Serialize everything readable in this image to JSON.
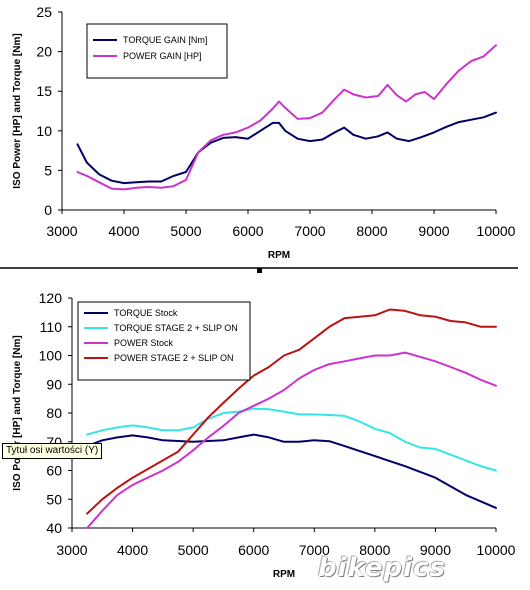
{
  "chart_data": [
    {
      "type": "line",
      "title": "",
      "xlabel": "RPM",
      "ylabel": "ISO Power [HP] and Torque [Nm]",
      "xlim": [
        3000,
        10000
      ],
      "ylim": [
        0,
        25
      ],
      "xticks": [
        "3000",
        "4000",
        "5000",
        "6000",
        "7000",
        "8000",
        "9000",
        "10000"
      ],
      "yticks": [
        "0",
        "5",
        "10",
        "15",
        "20",
        "25"
      ],
      "grid": false,
      "legend_position": "top-left",
      "series": [
        {
          "name": "TORQUE GAIN [Nm]",
          "color": "#000066",
          "x": [
            3250,
            3400,
            3600,
            3800,
            4000,
            4200,
            4400,
            4600,
            4800,
            5000,
            5200,
            5400,
            5600,
            5800,
            6000,
            6200,
            6400,
            6500,
            6600,
            6800,
            7000,
            7200,
            7400,
            7550,
            7700,
            7900,
            8100,
            8250,
            8400,
            8600,
            8800,
            9000,
            9200,
            9400,
            9600,
            9800,
            10000
          ],
          "y": [
            8.3,
            6.0,
            4.5,
            3.7,
            3.4,
            3.5,
            3.6,
            3.6,
            4.3,
            4.8,
            7.3,
            8.5,
            9.1,
            9.2,
            9.0,
            10.0,
            11.0,
            11.0,
            10.0,
            9.0,
            8.7,
            8.9,
            9.8,
            10.4,
            9.5,
            9.0,
            9.3,
            9.8,
            9.0,
            8.7,
            9.2,
            9.8,
            10.5,
            11.1,
            11.4,
            11.7,
            12.3
          ]
        },
        {
          "name": "POWER GAIN [HP]",
          "color": "#cc33cc",
          "x": [
            3250,
            3400,
            3600,
            3800,
            4000,
            4200,
            4400,
            4600,
            4800,
            5000,
            5200,
            5400,
            5600,
            5800,
            6000,
            6200,
            6400,
            6500,
            6600,
            6800,
            7000,
            7200,
            7400,
            7550,
            7700,
            7900,
            8100,
            8250,
            8400,
            8550,
            8700,
            8850,
            9000,
            9200,
            9400,
            9600,
            9800,
            10000
          ],
          "y": [
            4.8,
            4.3,
            3.5,
            2.7,
            2.6,
            2.8,
            2.9,
            2.8,
            3.0,
            3.8,
            7.3,
            8.8,
            9.5,
            9.8,
            10.4,
            11.3,
            12.8,
            13.7,
            12.9,
            11.5,
            11.6,
            12.3,
            14.0,
            15.2,
            14.6,
            14.2,
            14.4,
            15.8,
            14.5,
            13.7,
            14.6,
            14.9,
            14.0,
            15.9,
            17.6,
            18.8,
            19.4,
            20.8
          ]
        }
      ]
    },
    {
      "type": "line",
      "title": "",
      "xlabel": "RPM",
      "ylabel": "ISO Power [HP] and Torque [Nm]",
      "xlim": [
        3000,
        10000
      ],
      "ylim": [
        40,
        120
      ],
      "xticks": [
        "3000",
        "4000",
        "5000",
        "6000",
        "7000",
        "8000",
        "9000",
        "10000"
      ],
      "yticks": [
        "40",
        "50",
        "60",
        "70",
        "80",
        "90",
        "100",
        "110",
        "120"
      ],
      "grid": false,
      "legend_position": "top-left",
      "series": [
        {
          "name": "TORQUE Stock",
          "color": "#000066",
          "x": [
            3250,
            3500,
            3750,
            4000,
            4250,
            4500,
            5000,
            5500,
            5750,
            6000,
            6250,
            6500,
            6750,
            7000,
            7250,
            7500,
            8000,
            8500,
            9000,
            9500,
            10000
          ],
          "y": [
            68.5,
            70.5,
            71.5,
            72.2,
            71.5,
            70.5,
            70.0,
            70.5,
            71.5,
            72.5,
            71.5,
            70.0,
            70.0,
            70.5,
            70.2,
            68.5,
            65.0,
            61.5,
            57.5,
            51.5,
            47.0
          ]
        },
        {
          "name": "TORQUE STAGE 2 + SLIP ON",
          "color": "#33e6e6",
          "x": [
            3250,
            3500,
            3750,
            4000,
            4250,
            4500,
            4750,
            5000,
            5250,
            5500,
            5750,
            6000,
            6250,
            6500,
            6750,
            7000,
            7250,
            7500,
            7750,
            8000,
            8250,
            8500,
            8750,
            9000,
            9250,
            9500,
            9750,
            10000
          ],
          "y": [
            72.5,
            74.0,
            75.0,
            75.7,
            75.0,
            74.0,
            74.0,
            75.0,
            78.0,
            80.0,
            80.5,
            81.5,
            81.3,
            80.5,
            79.5,
            79.5,
            79.3,
            79.0,
            77.0,
            74.5,
            73.0,
            70.0,
            68.0,
            67.5,
            65.5,
            63.5,
            61.5,
            60.0
          ]
        },
        {
          "name": "POWER Stock",
          "color": "#cc33cc",
          "x": [
            3250,
            3500,
            3750,
            4000,
            4250,
            4500,
            4750,
            5000,
            5250,
            5500,
            5750,
            6000,
            6250,
            6500,
            6750,
            7000,
            7250,
            7500,
            7750,
            8000,
            8250,
            8500,
            8750,
            9000,
            9250,
            9500,
            9750,
            10000
          ],
          "y": [
            40.0,
            46.0,
            51.5,
            55.0,
            57.5,
            60.0,
            63.0,
            67.0,
            71.5,
            75.5,
            80.0,
            82.5,
            85.0,
            88.0,
            92.0,
            95.0,
            97.0,
            98.0,
            99.0,
            100.0,
            100.0,
            101.0,
            99.5,
            98.0,
            96.0,
            94.0,
            91.5,
            89.5
          ]
        },
        {
          "name": "POWER STAGE 2 + SLIP ON",
          "color": "#bb1111",
          "x": [
            3250,
            3500,
            3750,
            4000,
            4250,
            4500,
            4750,
            5000,
            5250,
            5500,
            5750,
            6000,
            6250,
            6500,
            6750,
            7000,
            7250,
            7500,
            7750,
            8000,
            8250,
            8500,
            8750,
            9000,
            9250,
            9500,
            9750,
            10000
          ],
          "y": [
            45.0,
            50.0,
            54.0,
            57.5,
            60.5,
            63.5,
            66.5,
            72.5,
            78.5,
            83.5,
            88.5,
            93.0,
            96.0,
            100.0,
            102.0,
            106.0,
            110.0,
            113.0,
            113.5,
            114.0,
            116.0,
            115.5,
            114.0,
            113.5,
            112.0,
            111.5,
            110.0,
            110.0
          ]
        }
      ]
    }
  ],
  "tooltip": {
    "text": "Tytuł osi wartości (Y)"
  },
  "watermark": {
    "text": "bikepics"
  }
}
